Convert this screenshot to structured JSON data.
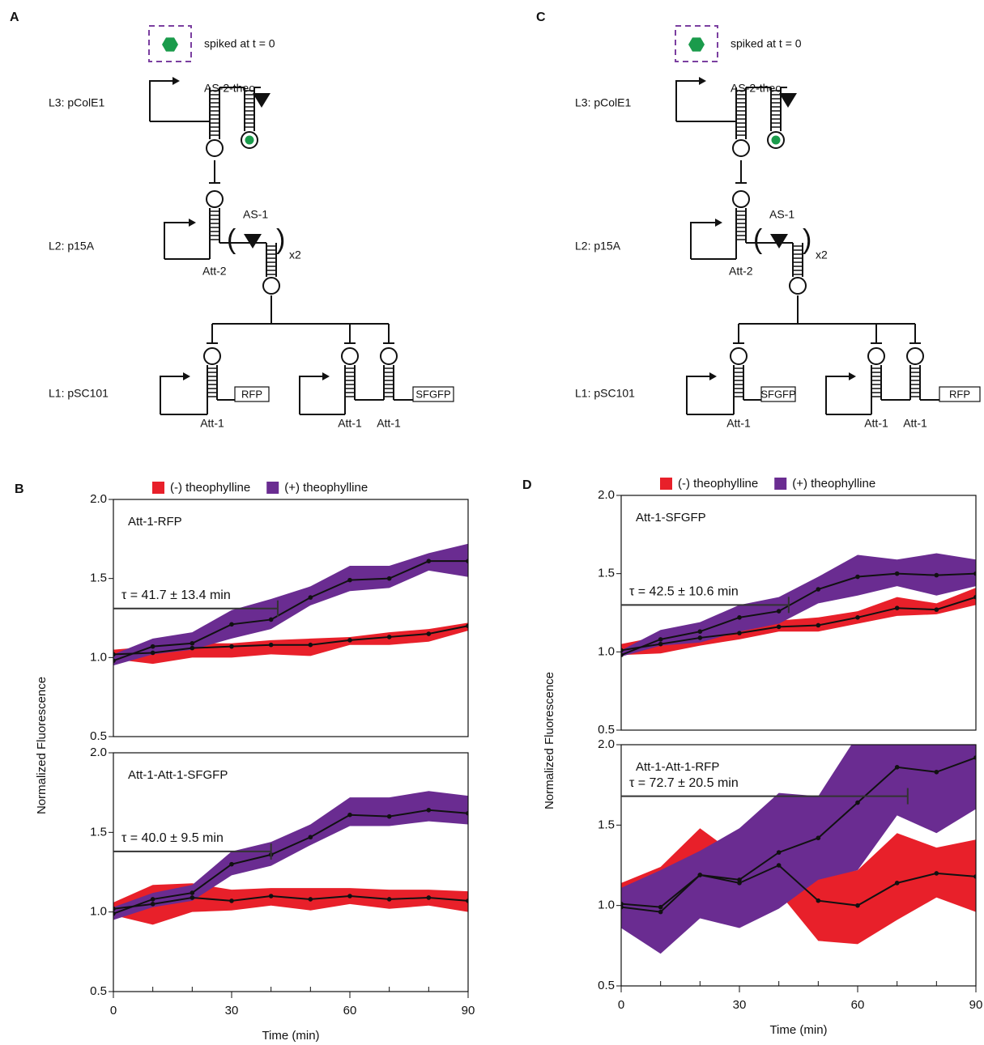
{
  "diagrams": [
    {
      "label": "A",
      "spike": "spiked at t = 0",
      "l3": "L3: pColE1",
      "l2": "L2: p15A",
      "l1": "L1: pSC101",
      "as2": "AS-2-theo",
      "as1": "AS-1",
      "att2": "Att-2",
      "x2": "x2",
      "genes": [
        "RFP",
        "SFGFP"
      ],
      "att1": [
        "Att-1",
        "Att-1",
        "Att-1"
      ]
    },
    {
      "label": "C",
      "spike": "spiked at t = 0",
      "l3": "L3: pColE1",
      "l2": "L2: p15A",
      "l1": "L1: pSC101",
      "as2": "AS-2-theo",
      "as1": "AS-1",
      "att2": "Att-2",
      "x2": "x2",
      "genes": [
        "SFGFP",
        "RFP"
      ],
      "att1": [
        "Att-1",
        "Att-1",
        "Att-1"
      ]
    }
  ],
  "chart_data": [
    {
      "type": "line",
      "panel": "B",
      "title": "Att-1-RFP",
      "ylabel": "Normalized Fluorescence",
      "x": [
        0,
        10,
        20,
        30,
        40,
        50,
        60,
        70,
        80,
        90
      ],
      "xlim": [
        0,
        90
      ],
      "ylim": [
        0.5,
        2.0
      ],
      "yticks": [
        0.5,
        {
          "value": 1,
          "label": "1.0"
        },
        1.5,
        {
          "value": 2,
          "label": "2.0"
        }
      ],
      "series": [
        {
          "name": "(-) theophylline",
          "color": "#e8202a",
          "values": [
            1.02,
            1.03,
            1.06,
            1.07,
            1.08,
            1.08,
            1.11,
            1.13,
            1.15,
            1.2
          ],
          "lower": [
            0.99,
            0.96,
            1.0,
            1.0,
            1.02,
            1.01,
            1.08,
            1.08,
            1.1,
            1.17
          ],
          "upper": [
            1.05,
            1.07,
            1.09,
            1.09,
            1.11,
            1.12,
            1.13,
            1.16,
            1.18,
            1.22
          ]
        },
        {
          "name": "(+) theophylline",
          "color": "#6a2c91",
          "values": [
            0.98,
            1.07,
            1.09,
            1.21,
            1.24,
            1.38,
            1.49,
            1.5,
            1.61,
            1.61
          ],
          "lower": [
            0.95,
            1.02,
            1.05,
            1.12,
            1.18,
            1.33,
            1.42,
            1.44,
            1.55,
            1.51
          ],
          "upper": [
            1.02,
            1.12,
            1.16,
            1.3,
            1.37,
            1.45,
            1.58,
            1.58,
            1.66,
            1.72
          ]
        }
      ],
      "annotation": {
        "label": "τ = 41.7 ± 13.4 min",
        "tau": 41.7,
        "y": 1.31
      }
    },
    {
      "type": "line",
      "title": "Att-1-Att-1-SFGFP",
      "xlabel": "Time (min)",
      "x": [
        0,
        10,
        20,
        30,
        40,
        50,
        60,
        70,
        80,
        90
      ],
      "xlim": [
        0,
        90
      ],
      "ylim": [
        0.5,
        2.0
      ],
      "xticks": [
        0,
        30,
        60,
        90
      ],
      "xminorticks": [
        10,
        20,
        40,
        50,
        70,
        80
      ],
      "yticks": [
        0.5,
        {
          "value": 1,
          "label": "1.0"
        },
        1.5,
        {
          "value": 2,
          "label": "2.0"
        }
      ],
      "series": [
        {
          "color": "#e8202a",
          "values": [
            1.02,
            1.05,
            1.09,
            1.07,
            1.1,
            1.08,
            1.1,
            1.08,
            1.09,
            1.07
          ],
          "lower": [
            0.98,
            0.92,
            1.0,
            1.01,
            1.04,
            1.01,
            1.05,
            1.02,
            1.04,
            1.0
          ],
          "upper": [
            1.06,
            1.17,
            1.18,
            1.14,
            1.15,
            1.15,
            1.15,
            1.14,
            1.14,
            1.13
          ]
        },
        {
          "color": "#6a2c91",
          "values": [
            0.99,
            1.08,
            1.12,
            1.3,
            1.36,
            1.47,
            1.61,
            1.6,
            1.64,
            1.62
          ],
          "lower": [
            0.95,
            1.03,
            1.07,
            1.23,
            1.29,
            1.42,
            1.54,
            1.54,
            1.57,
            1.55
          ],
          "upper": [
            1.03,
            1.12,
            1.17,
            1.38,
            1.44,
            1.55,
            1.72,
            1.72,
            1.76,
            1.73
          ]
        }
      ],
      "annotation": {
        "label": "τ = 40.0 ± 9.5 min",
        "tau": 40.0,
        "y": 1.38
      }
    },
    {
      "type": "line",
      "panel": "D",
      "title": "Att-1-SFGFP",
      "ylabel": "Normalized Fluorescence",
      "x": [
        0,
        10,
        20,
        30,
        40,
        50,
        60,
        70,
        80,
        90
      ],
      "xlim": [
        0,
        90
      ],
      "ylim": [
        0.5,
        2.0
      ],
      "yticks": [
        0.5,
        {
          "value": 1,
          "label": "1.0"
        },
        1.5,
        {
          "value": 2,
          "label": "2.0"
        }
      ],
      "series": [
        {
          "name": "(-) theophylline",
          "color": "#e8202a",
          "values": [
            1.01,
            1.05,
            1.09,
            1.12,
            1.16,
            1.17,
            1.22,
            1.28,
            1.27,
            1.35
          ],
          "lower": [
            0.98,
            0.99,
            1.04,
            1.08,
            1.13,
            1.13,
            1.18,
            1.23,
            1.24,
            1.3
          ],
          "upper": [
            1.05,
            1.1,
            1.12,
            1.17,
            1.2,
            1.22,
            1.26,
            1.35,
            1.31,
            1.41
          ]
        },
        {
          "name": "(+) theophylline",
          "color": "#6a2c91",
          "values": [
            0.98,
            1.08,
            1.13,
            1.22,
            1.26,
            1.4,
            1.48,
            1.5,
            1.49,
            1.5
          ],
          "lower": [
            0.97,
            1.04,
            1.06,
            1.13,
            1.18,
            1.31,
            1.36,
            1.42,
            1.36,
            1.42
          ],
          "upper": [
            1.01,
            1.14,
            1.19,
            1.3,
            1.35,
            1.48,
            1.62,
            1.59,
            1.63,
            1.59
          ]
        }
      ],
      "annotation": {
        "label": "τ = 42.5 ± 10.6 min",
        "tau": 42.5,
        "y": 1.3
      }
    },
    {
      "type": "line",
      "title": "Att-1-Att-1-RFP",
      "xlabel": "Time (min)",
      "x": [
        0,
        10,
        20,
        30,
        40,
        50,
        60,
        70,
        80,
        90
      ],
      "xlim": [
        0,
        90
      ],
      "ylim": [
        0.5,
        2.0
      ],
      "xticks": [
        0,
        30,
        60,
        90
      ],
      "xminorticks": [
        10,
        20,
        40,
        50,
        70,
        80
      ],
      "yticks": [
        0.5,
        {
          "value": 1,
          "label": "1.0"
        },
        1.5,
        {
          "value": 2,
          "label": "2.0"
        }
      ],
      "series": [
        {
          "color": "#e8202a",
          "values": [
            1.01,
            0.99,
            1.19,
            1.14,
            1.25,
            1.03,
            1.0,
            1.14,
            1.2,
            1.18
          ],
          "lower": [
            0.88,
            0.78,
            0.92,
            0.97,
            1.08,
            0.78,
            0.76,
            0.91,
            1.05,
            0.96
          ],
          "upper": [
            1.14,
            1.24,
            1.48,
            1.3,
            1.41,
            1.17,
            1.22,
            1.45,
            1.36,
            1.41
          ]
        },
        {
          "color": "#6a2c91",
          "values": [
            0.99,
            0.96,
            1.19,
            1.16,
            1.33,
            1.42,
            1.64,
            1.86,
            1.83,
            1.92
          ],
          "lower": [
            0.86,
            0.7,
            0.92,
            0.86,
            0.98,
            1.16,
            1.22,
            1.56,
            1.45,
            1.6
          ],
          "upper": [
            1.11,
            1.22,
            1.34,
            1.48,
            1.7,
            1.68,
            2.06,
            2.16,
            2.2,
            2.24
          ]
        }
      ],
      "annotation": {
        "label": "τ = 72.7 ± 20.5 min",
        "tau": 72.7,
        "y": 1.68
      }
    }
  ]
}
